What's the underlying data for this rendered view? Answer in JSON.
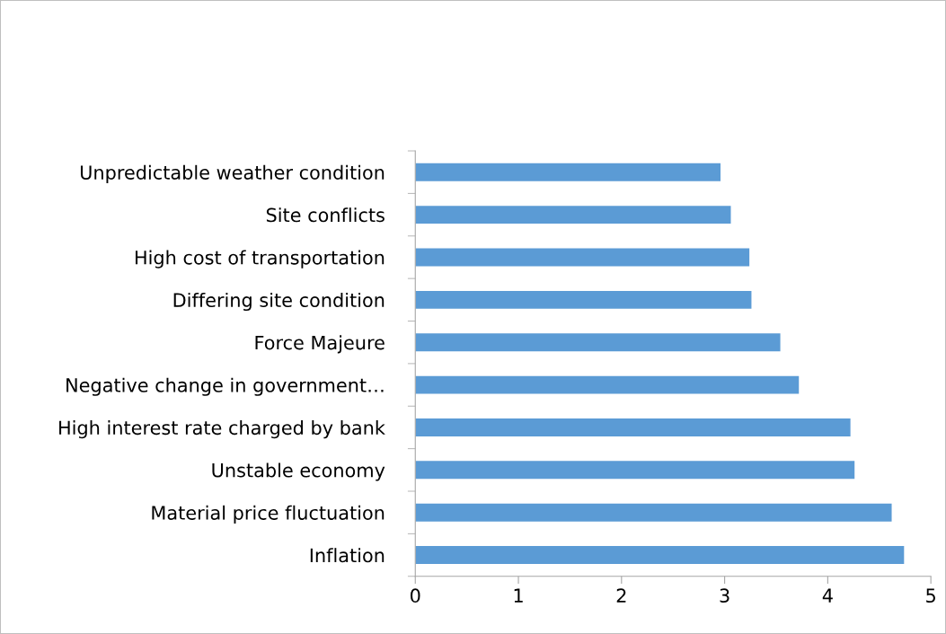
{
  "chart_data": {
    "type": "bar",
    "orientation": "horizontal",
    "categories": [
      "Unpredictable weather condition",
      "Site conflicts",
      "High cost of transportation",
      "Differing site condition",
      "Force Majeure",
      "Negative change in government…",
      "High interest rate charged by bank",
      "Unstable economy",
      "Material price fluctuation",
      "Inflation"
    ],
    "values": [
      2.96,
      3.06,
      3.24,
      3.26,
      3.54,
      3.72,
      4.22,
      4.26,
      4.62,
      4.74
    ],
    "color": "#5b9bd5",
    "xlim": [
      0,
      5
    ],
    "xticks": [
      0,
      1,
      2,
      3,
      4,
      5
    ],
    "grid": false,
    "legend": false
  }
}
